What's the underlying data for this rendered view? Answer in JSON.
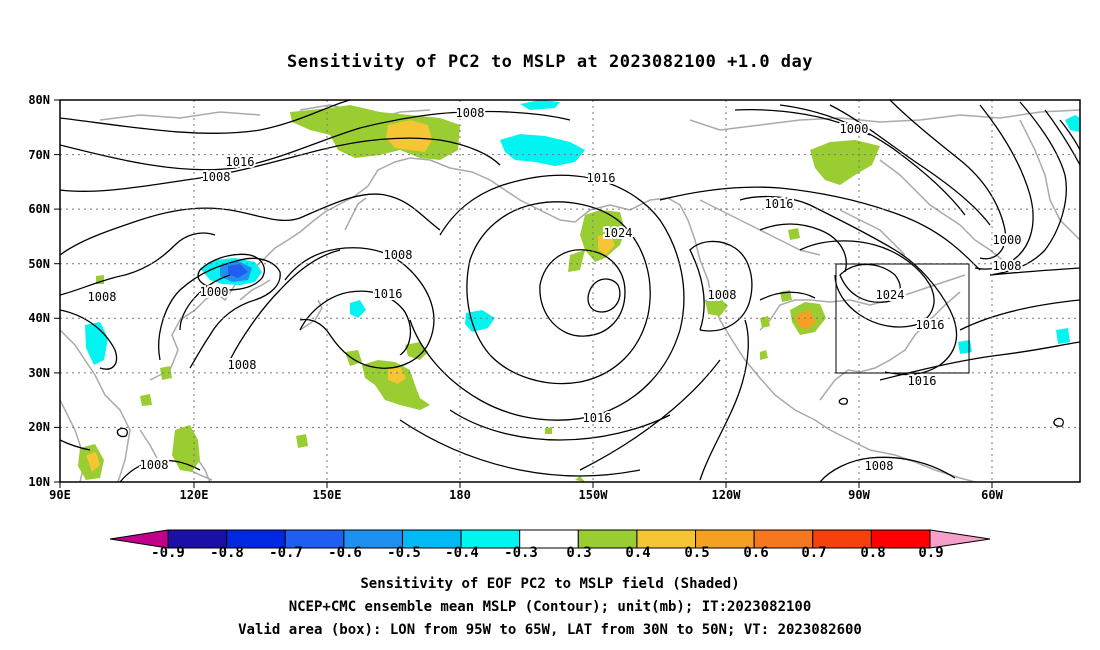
{
  "title": "Sensitivity of PC2 to MSLP at 2023082100 +1.0 day",
  "map": {
    "lon_ticks": [
      "90E",
      "120E",
      "150E",
      "180",
      "150W",
      "120W",
      "90W",
      "60W"
    ],
    "lat_ticks": [
      "80N",
      "70N",
      "60N",
      "50N",
      "40N",
      "30N",
      "20N",
      "10N"
    ],
    "contour_labels": [
      "1008",
      "1016",
      "1008",
      "1000",
      "1008",
      "1008",
      "1008",
      "1016",
      "1016",
      "1024",
      "1008",
      "1016",
      "1016",
      "1000",
      "1000",
      "1008",
      "1024",
      "1016",
      "1016",
      "1008",
      "1008"
    ],
    "valid_box": {
      "lon_from": "95W",
      "lon_to": "65W",
      "lat_from": "30N",
      "lat_to": "50N"
    },
    "colors": {
      "land": "#aaaaaa",
      "contour": "#000000",
      "grid": "#777777"
    }
  },
  "colorbar": {
    "labels": [
      "-0.9",
      "-0.8",
      "-0.7",
      "-0.6",
      "-0.5",
      "-0.4",
      "-0.3",
      "0.3",
      "0.4",
      "0.5",
      "0.6",
      "0.7",
      "0.8",
      "0.9"
    ],
    "colors": [
      "#1c0fa8",
      "#0028e0",
      "#1f5ef0",
      "#1e90f0",
      "#00b9f5",
      "#00f5f0",
      "#ffffff",
      "#9acd32",
      "#f5c533",
      "#f5a022",
      "#f5781e",
      "#f5420d",
      "#ff0000"
    ],
    "low_end": "#c0008a",
    "high_end": "#f5a0c8"
  },
  "captions": [
    "Sensitivity of EOF PC2 to MSLP field (Shaded)",
    "NCEP+CMC ensemble mean MSLP (Contour); unit(mb); IT:2023082100",
    "Valid area (box): LON from 95W to 65W, LAT from 30N to 50N; VT: 2023082600"
  ]
}
